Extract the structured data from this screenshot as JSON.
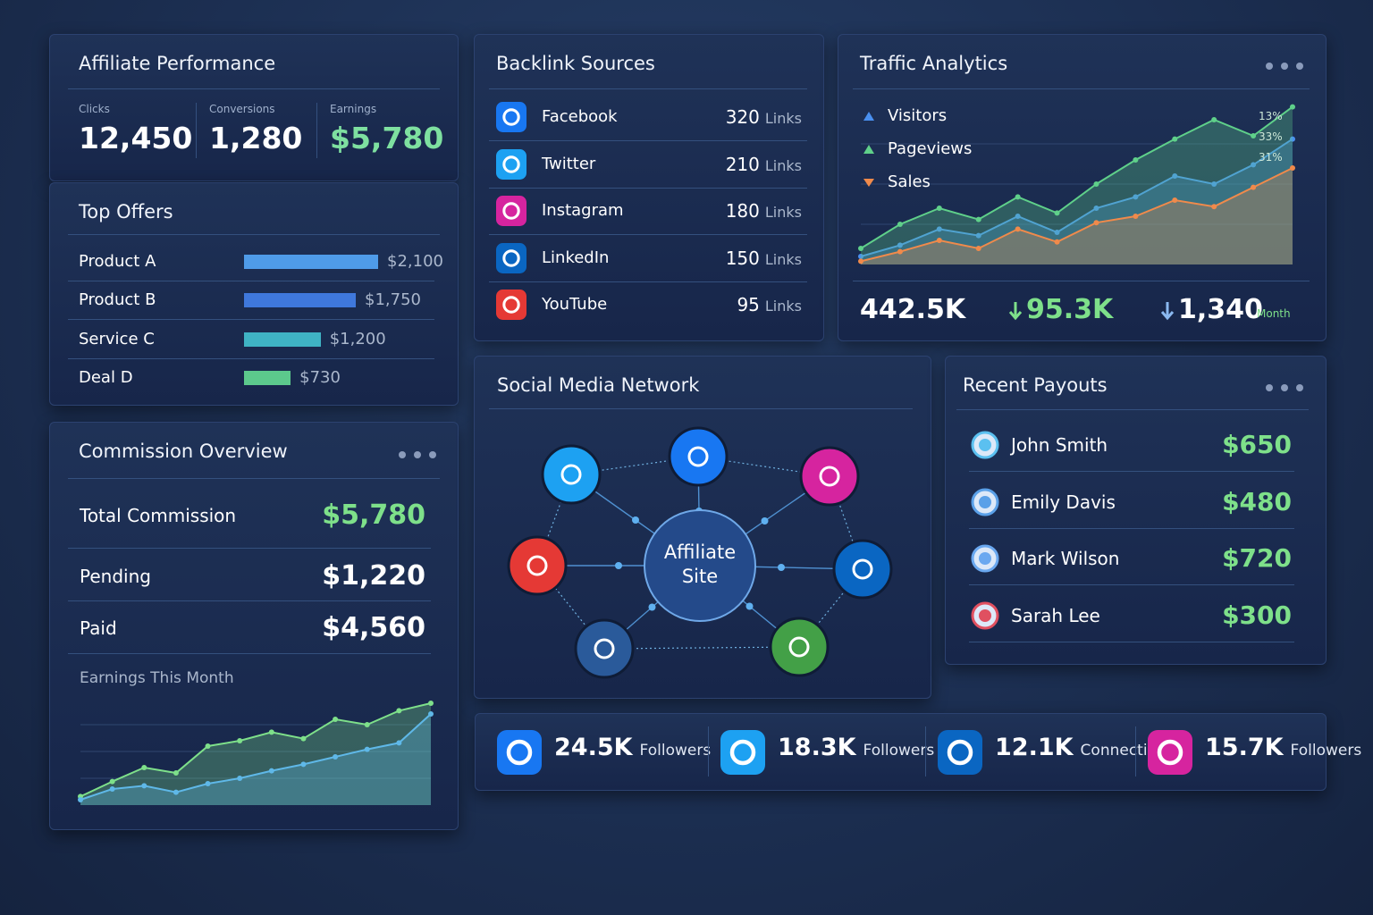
{
  "affiliate_performance": {
    "title": "Affiliate Performance",
    "metrics": [
      {
        "label": "Clicks",
        "value": "12,450"
      },
      {
        "label": "Conversions",
        "value": "1,280"
      },
      {
        "label": "Earnings",
        "value": "$5,780"
      }
    ]
  },
  "top_offers": {
    "title": "Top Offers",
    "rows": [
      {
        "name": "Product A",
        "value": 2100,
        "value_label": "$2,100",
        "color": "#4f9be8"
      },
      {
        "name": "Product B",
        "value": 1750,
        "value_label": "$1,750",
        "color": "#3f78dc"
      },
      {
        "name": "Service C",
        "value": 1200,
        "value_label": "$1,200",
        "color": "#3fb3c4"
      },
      {
        "name": "Deal D",
        "value": 730,
        "value_label": "$730",
        "color": "#5cc98c"
      }
    ]
  },
  "commission_overview": {
    "title": "Commission Overview",
    "rows": [
      {
        "label": "Total Commission",
        "value": "$5,780"
      },
      {
        "label": "Pending",
        "value": "$1,220"
      },
      {
        "label": "Paid",
        "value": "$4,560"
      }
    ],
    "chart": {
      "title": "Earnings This Month",
      "ylim": [
        0,
        100
      ],
      "series": [
        {
          "color": "#7ee08a",
          "values": [
            8,
            22,
            35,
            30,
            55,
            60,
            68,
            62,
            80,
            75,
            88,
            95
          ]
        },
        {
          "color": "#5fb8e8",
          "values": [
            5,
            15,
            18,
            12,
            20,
            25,
            32,
            38,
            45,
            52,
            58,
            85
          ]
        }
      ]
    }
  },
  "backlink_sources": {
    "title": "Backlink Sources",
    "rows": [
      {
        "name": "Facebook",
        "count": 320,
        "unit": "Links",
        "color": "#1877f2"
      },
      {
        "name": "Twitter",
        "count": 210,
        "unit": "Links",
        "color": "#1da1f2"
      },
      {
        "name": "Instagram",
        "count": 180,
        "unit": "Links",
        "color": "#d6249f"
      },
      {
        "name": "LinkedIn",
        "count": 150,
        "unit": "Links",
        "color": "#0a66c2"
      },
      {
        "name": "YouTube",
        "count": 95,
        "unit": "Links",
        "color": "#e53935"
      }
    ]
  },
  "traffic_analytics": {
    "title": "Traffic Analytics",
    "chart": {
      "ylim": [
        0,
        100
      ],
      "series": [
        {
          "name": "Visitors",
          "color": "#4a90f0",
          "values": [
            5,
            12,
            22,
            18,
            30,
            20,
            35,
            42,
            55,
            50,
            62,
            78
          ]
        },
        {
          "name": "Pageviews",
          "color": "#5fd08a",
          "values": [
            10,
            25,
            35,
            28,
            42,
            32,
            50,
            65,
            78,
            90,
            80,
            98
          ]
        },
        {
          "name": "Sales",
          "color": "#f08a4b",
          "values": [
            2,
            8,
            15,
            10,
            22,
            14,
            26,
            30,
            40,
            36,
            48,
            60
          ]
        }
      ],
      "annotations": [
        "13%",
        "33%",
        "31%"
      ]
    },
    "stats": [
      {
        "value": "442.5K"
      },
      {
        "value": "95.3K"
      },
      {
        "value": "1,340",
        "note": "Month"
      }
    ]
  },
  "social_media_network": {
    "title": "Social Media Network",
    "center": "Affiliate Site"
  },
  "recent_payouts": {
    "title": "Recent Payouts",
    "rows": [
      {
        "name": "John Smith",
        "amount": "$650",
        "color": "#5bc0f0"
      },
      {
        "name": "Emily Davis",
        "amount": "$480",
        "color": "#5aa0e8"
      },
      {
        "name": "Mark Wilson",
        "amount": "$720",
        "color": "#6aa8f0"
      },
      {
        "name": "Sarah Lee",
        "amount": "$300",
        "color": "#e05060"
      }
    ]
  },
  "followers": [
    {
      "count": "24.5K",
      "label": "Followers",
      "color": "#1877f2"
    },
    {
      "count": "18.3K",
      "label": "Followers",
      "color": "#1da1f2"
    },
    {
      "count": "12.1K",
      "label": "Connection",
      "color": "#0a66c2"
    },
    {
      "count": "15.7K",
      "label": "Followers",
      "color": "#d6249f"
    }
  ]
}
